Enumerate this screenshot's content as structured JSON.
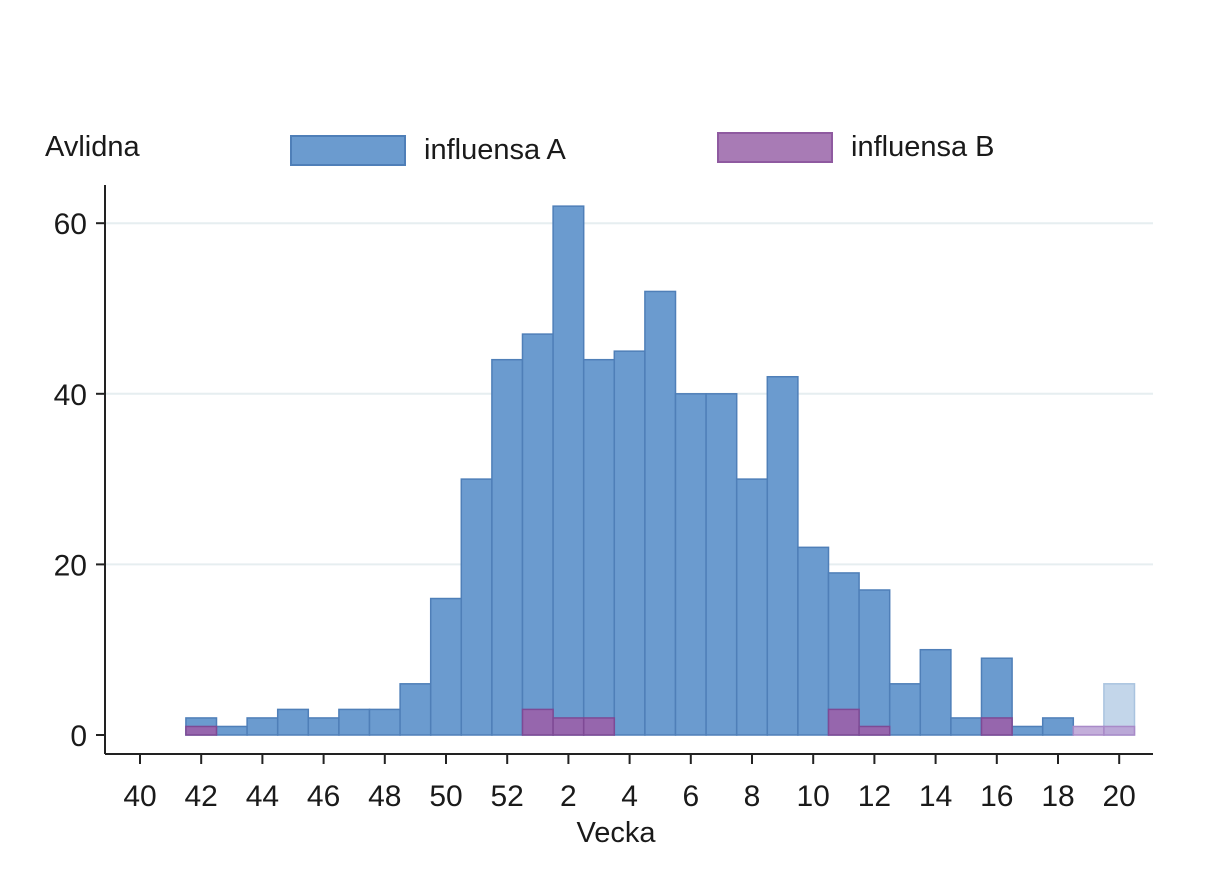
{
  "chart_data": {
    "type": "bar",
    "y_title": "Avlidna",
    "xlabel": "Vecka",
    "ylim": [
      0,
      62
    ],
    "y_ticks": [
      0,
      20,
      40,
      60
    ],
    "x_tick_labels": [
      "40",
      "42",
      "44",
      "46",
      "48",
      "50",
      "52",
      "2",
      "4",
      "6",
      "8",
      "10",
      "12",
      "14",
      "16",
      "18",
      "20"
    ],
    "categories": [
      "40",
      "41",
      "42",
      "43",
      "44",
      "45",
      "46",
      "47",
      "48",
      "49",
      "50",
      "51",
      "52",
      "1",
      "2",
      "3",
      "4",
      "5",
      "6",
      "7",
      "8",
      "9",
      "10",
      "11",
      "12",
      "13",
      "14",
      "15",
      "16",
      "17",
      "18",
      "19",
      "20"
    ],
    "series": [
      {
        "name": "influensa A",
        "color": "#5b8ec8",
        "values": [
          0,
          0,
          2,
          1,
          2,
          3,
          2,
          3,
          3,
          6,
          16,
          30,
          44,
          47,
          62,
          44,
          45,
          52,
          40,
          40,
          30,
          42,
          22,
          19,
          17,
          6,
          10,
          2,
          9,
          1,
          2,
          0,
          6
        ],
        "faded_from_index": 32
      },
      {
        "name": "influensa B",
        "color": "#9b61a8",
        "values": [
          0,
          0,
          1,
          0,
          0,
          0,
          0,
          0,
          0,
          0,
          0,
          0,
          0,
          3,
          2,
          2,
          0,
          0,
          0,
          0,
          0,
          0,
          0,
          3,
          1,
          0,
          0,
          0,
          2,
          0,
          0,
          1,
          1
        ],
        "faded_from_index": 31
      }
    ]
  }
}
